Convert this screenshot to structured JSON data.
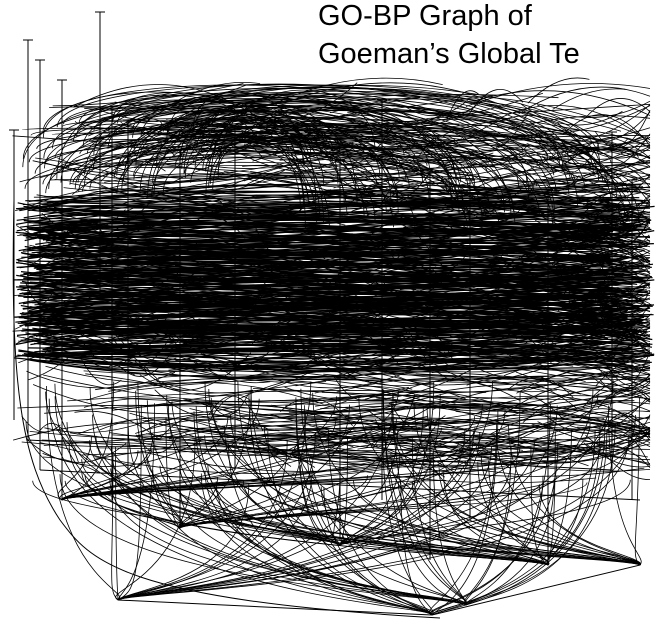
{
  "title": {
    "line1": "GO-BP Graph of",
    "line2": "Goeman’s Global Te"
  },
  "colors": {
    "background": "#ffffff",
    "edges": "#000000",
    "text": "#000000"
  }
}
